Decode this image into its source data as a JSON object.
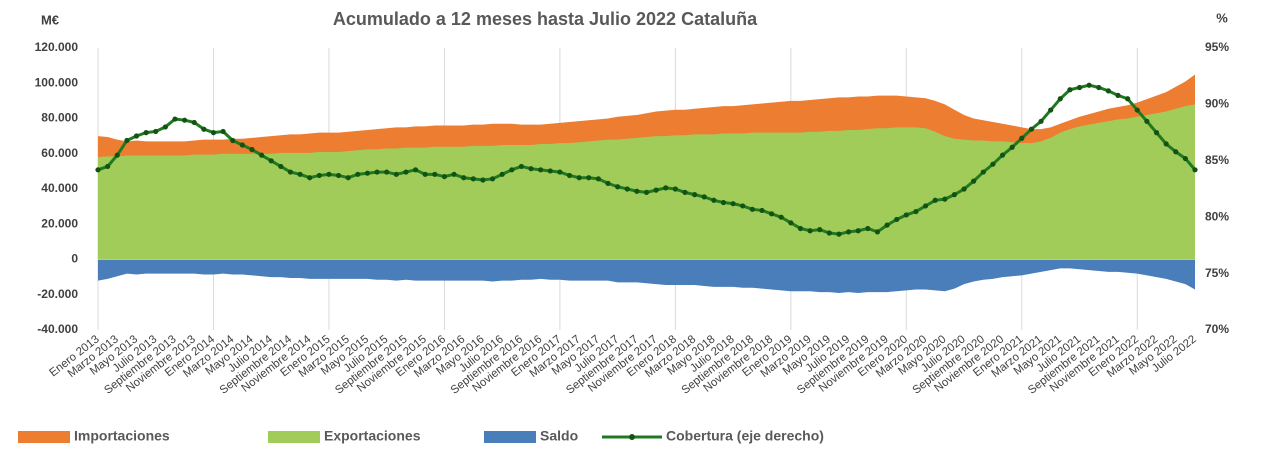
{
  "chart_data": {
    "type": "area",
    "title": "Acumulado a 12 meses hasta Julio 2022 Cataluña",
    "y_label": "M€",
    "y2_label": "%",
    "categories": [
      "Enero 2013",
      null,
      "Marzo 2013",
      null,
      "Mayo 2013",
      null,
      "Julio 2013",
      null,
      "Septiembre 2013",
      null,
      "Noviembre 2013",
      null,
      "Enero 2014",
      null,
      "Marzo 2014",
      null,
      "Mayo 2014",
      null,
      "Julio 2014",
      null,
      "Septiembre 2014",
      null,
      "Noviembre 2014",
      null,
      "Enero 2015",
      null,
      "Marzo 2015",
      null,
      "Mayo 2015",
      null,
      "Julio 2015",
      null,
      "Septiembre 2015",
      null,
      "Noviembre 2015",
      null,
      "Enero 2016",
      null,
      "Marzo 2016",
      null,
      "Mayo 2016",
      null,
      "Julio 2016",
      null,
      "Septiembre 2016",
      null,
      "Noviembre 2016",
      null,
      "Enero 2017",
      null,
      "Marzo 2017",
      null,
      "Mayo 2017",
      null,
      "Julio 2017",
      null,
      "Septiembre 2017",
      null,
      "Noviembre 2017",
      null,
      "Enero 2018",
      null,
      "Marzo 2018",
      null,
      "Mayo 2018",
      null,
      "Julio 2018",
      null,
      "Septiembre 2018",
      null,
      "Noviembre 2018",
      null,
      "Enero 2019",
      null,
      "Marzo 2019",
      null,
      "Mayo 2019",
      null,
      "Julio 2019",
      null,
      "Septiembre 2019",
      null,
      "Noviembre 2019",
      null,
      "Enero 2020",
      null,
      "Marzo 2020",
      null,
      "Mayo 2020",
      null,
      "Julio 2020",
      null,
      "Septiembre 2020",
      null,
      "Noviembre 2020",
      null,
      "Enero 2021",
      null,
      "Marzo 2021",
      null,
      "Mayo 2021",
      null,
      "Julio 2021",
      null,
      "Septiembre 2021",
      null,
      "Noviembre 2021",
      null,
      "Enero 2022",
      null,
      "Marzo 2022",
      null,
      "Mayo 2022",
      null,
      "Julio 2022"
    ],
    "series": [
      {
        "name": "Importaciones",
        "color": "#ed7d31",
        "values": [
          70000,
          69500,
          68000,
          67000,
          67500,
          67000,
          67000,
          67000,
          67000,
          67000,
          67500,
          68000,
          68000,
          68000,
          68500,
          68500,
          69000,
          69500,
          70000,
          70500,
          71000,
          71000,
          71500,
          72000,
          72000,
          72000,
          72500,
          73000,
          73500,
          74000,
          74500,
          75000,
          75000,
          75500,
          75500,
          76000,
          76000,
          76000,
          76000,
          76500,
          76500,
          77000,
          77000,
          77000,
          76500,
          76500,
          76500,
          77000,
          77500,
          78000,
          78500,
          79000,
          79500,
          80000,
          81000,
          81500,
          82000,
          83000,
          84000,
          84500,
          85000,
          85000,
          85500,
          86000,
          86500,
          87000,
          87000,
          87500,
          88000,
          88500,
          89000,
          89500,
          90000,
          90000,
          90500,
          91000,
          91500,
          92000,
          92000,
          92500,
          92500,
          93000,
          93000,
          93000,
          92500,
          92000,
          91500,
          90000,
          88000,
          85000,
          82000,
          80000,
          79000,
          78000,
          77000,
          76000,
          75000,
          74000,
          74000,
          75000,
          77000,
          79000,
          81000,
          82500,
          84000,
          85500,
          86500,
          87500,
          89000,
          91000,
          93000,
          95000,
          98000,
          101000,
          105000
        ]
      },
      {
        "name": "Exportaciones",
        "color": "#a2cc5a",
        "values": [
          58000,
          58500,
          58500,
          59000,
          59000,
          59000,
          59000,
          59000,
          59000,
          59000,
          59500,
          59500,
          59500,
          60000,
          60000,
          60000,
          60000,
          60000,
          60000,
          60500,
          60500,
          60500,
          60500,
          61000,
          61000,
          61000,
          61500,
          62000,
          62500,
          62500,
          63000,
          63000,
          63500,
          63500,
          63500,
          64000,
          64000,
          64000,
          64000,
          64500,
          64500,
          64500,
          65000,
          65000,
          65000,
          65000,
          65500,
          65500,
          66000,
          66000,
          66500,
          67000,
          67500,
          68000,
          68000,
          68500,
          69000,
          69500,
          70000,
          70000,
          70500,
          70500,
          71000,
          71000,
          71000,
          71500,
          71500,
          71500,
          72000,
          72000,
          72000,
          72000,
          72000,
          72000,
          72500,
          72500,
          73000,
          73000,
          73500,
          73500,
          74000,
          74500,
          74500,
          75000,
          75000,
          75000,
          74500,
          72500,
          70000,
          68500,
          68000,
          67500,
          67500,
          67000,
          67000,
          66500,
          66000,
          66000,
          67000,
          69000,
          72000,
          74000,
          75500,
          76500,
          77500,
          78500,
          79500,
          80000,
          81000,
          82000,
          83000,
          84000,
          85500,
          87000,
          88000
        ]
      },
      {
        "name": "Saldo",
        "color": "#4a7ebb",
        "values": [
          -12000,
          -11000,
          -9500,
          -8000,
          -8500,
          -8000,
          -8000,
          -8000,
          -8000,
          -8000,
          -8000,
          -8500,
          -8500,
          -8000,
          -8500,
          -8500,
          -9000,
          -9500,
          -10000,
          -10000,
          -10500,
          -10500,
          -11000,
          -11000,
          -11000,
          -11000,
          -11000,
          -11000,
          -11000,
          -11500,
          -11500,
          -12000,
          -11500,
          -12000,
          -12000,
          -12000,
          -12000,
          -12000,
          -12000,
          -12000,
          -12000,
          -12500,
          -12000,
          -12000,
          -11500,
          -11500,
          -11000,
          -11500,
          -11500,
          -12000,
          -12000,
          -12000,
          -12000,
          -12000,
          -13000,
          -13000,
          -13000,
          -13500,
          -14000,
          -14500,
          -14500,
          -14500,
          -14500,
          -15000,
          -15500,
          -15500,
          -15500,
          -16000,
          -16000,
          -16500,
          -17000,
          -17500,
          -18000,
          -18000,
          -18000,
          -18500,
          -18500,
          -19000,
          -18500,
          -19000,
          -18500,
          -18500,
          -18500,
          -18000,
          -17500,
          -17000,
          -17000,
          -17500,
          -18000,
          -16500,
          -14000,
          -12500,
          -11500,
          -11000,
          -10000,
          -9500,
          -9000,
          -8000,
          -7000,
          -6000,
          -5000,
          -5000,
          -5500,
          -6000,
          -6500,
          -7000,
          -7000,
          -7500,
          -8000,
          -9000,
          -10000,
          -11000,
          -12500,
          -14000,
          -17000
        ]
      },
      {
        "name": "Cobertura (eje derecho)",
        "color": "#1e7a1e",
        "type": "line",
        "axis": "y2",
        "values": [
          84.2,
          84.5,
          85.5,
          86.8,
          87.2,
          87.5,
          87.6,
          88.0,
          88.7,
          88.6,
          88.4,
          87.8,
          87.5,
          87.6,
          86.8,
          86.4,
          86.0,
          85.5,
          85.0,
          84.5,
          84.0,
          83.8,
          83.5,
          83.7,
          83.8,
          83.7,
          83.5,
          83.8,
          83.9,
          84.0,
          84.0,
          83.8,
          84.0,
          84.2,
          83.8,
          83.8,
          83.6,
          83.8,
          83.5,
          83.4,
          83.3,
          83.4,
          83.8,
          84.2,
          84.5,
          84.3,
          84.2,
          84.1,
          84.0,
          83.7,
          83.5,
          83.5,
          83.4,
          83.0,
          82.7,
          82.5,
          82.3,
          82.2,
          82.4,
          82.6,
          82.5,
          82.2,
          82.0,
          81.8,
          81.5,
          81.3,
          81.2,
          81.0,
          80.7,
          80.6,
          80.3,
          80.0,
          79.5,
          79.0,
          78.8,
          78.9,
          78.6,
          78.5,
          78.7,
          78.8,
          79.0,
          78.7,
          79.3,
          79.8,
          80.2,
          80.5,
          81.0,
          81.5,
          81.6,
          82.0,
          82.5,
          83.2,
          84.0,
          84.7,
          85.5,
          86.2,
          87.0,
          87.8,
          88.5,
          89.5,
          90.5,
          91.3,
          91.5,
          91.7,
          91.5,
          91.2,
          90.8,
          90.5,
          89.5,
          88.5,
          87.5,
          86.5,
          85.8,
          85.2,
          84.2
        ]
      }
    ],
    "ylim": [
      -40000,
      120000
    ],
    "yticks": [
      {
        "value": -40000,
        "label": "-40.000"
      },
      {
        "value": -20000,
        "label": "-20.000"
      },
      0,
      {
        "value": 20000,
        "label": "20.000"
      },
      {
        "value": 40000,
        "label": "40.000"
      },
      {
        "value": 60000,
        "label": "60.000"
      },
      {
        "value": 80000,
        "label": "80.000"
      },
      {
        "value": 100000,
        "label": "100.000"
      },
      {
        "value": 120000,
        "label": "120.000"
      }
    ],
    "y2lim": [
      70,
      95
    ],
    "y2ticks": [
      {
        "value": 70,
        "label": "70%"
      },
      {
        "value": 75,
        "label": "75%"
      },
      {
        "value": 80,
        "label": "80%"
      },
      {
        "value": 85,
        "label": "85%"
      },
      {
        "value": 90,
        "label": "90%"
      },
      {
        "value": 95,
        "label": "95%"
      }
    ],
    "legend": "bottom"
  }
}
